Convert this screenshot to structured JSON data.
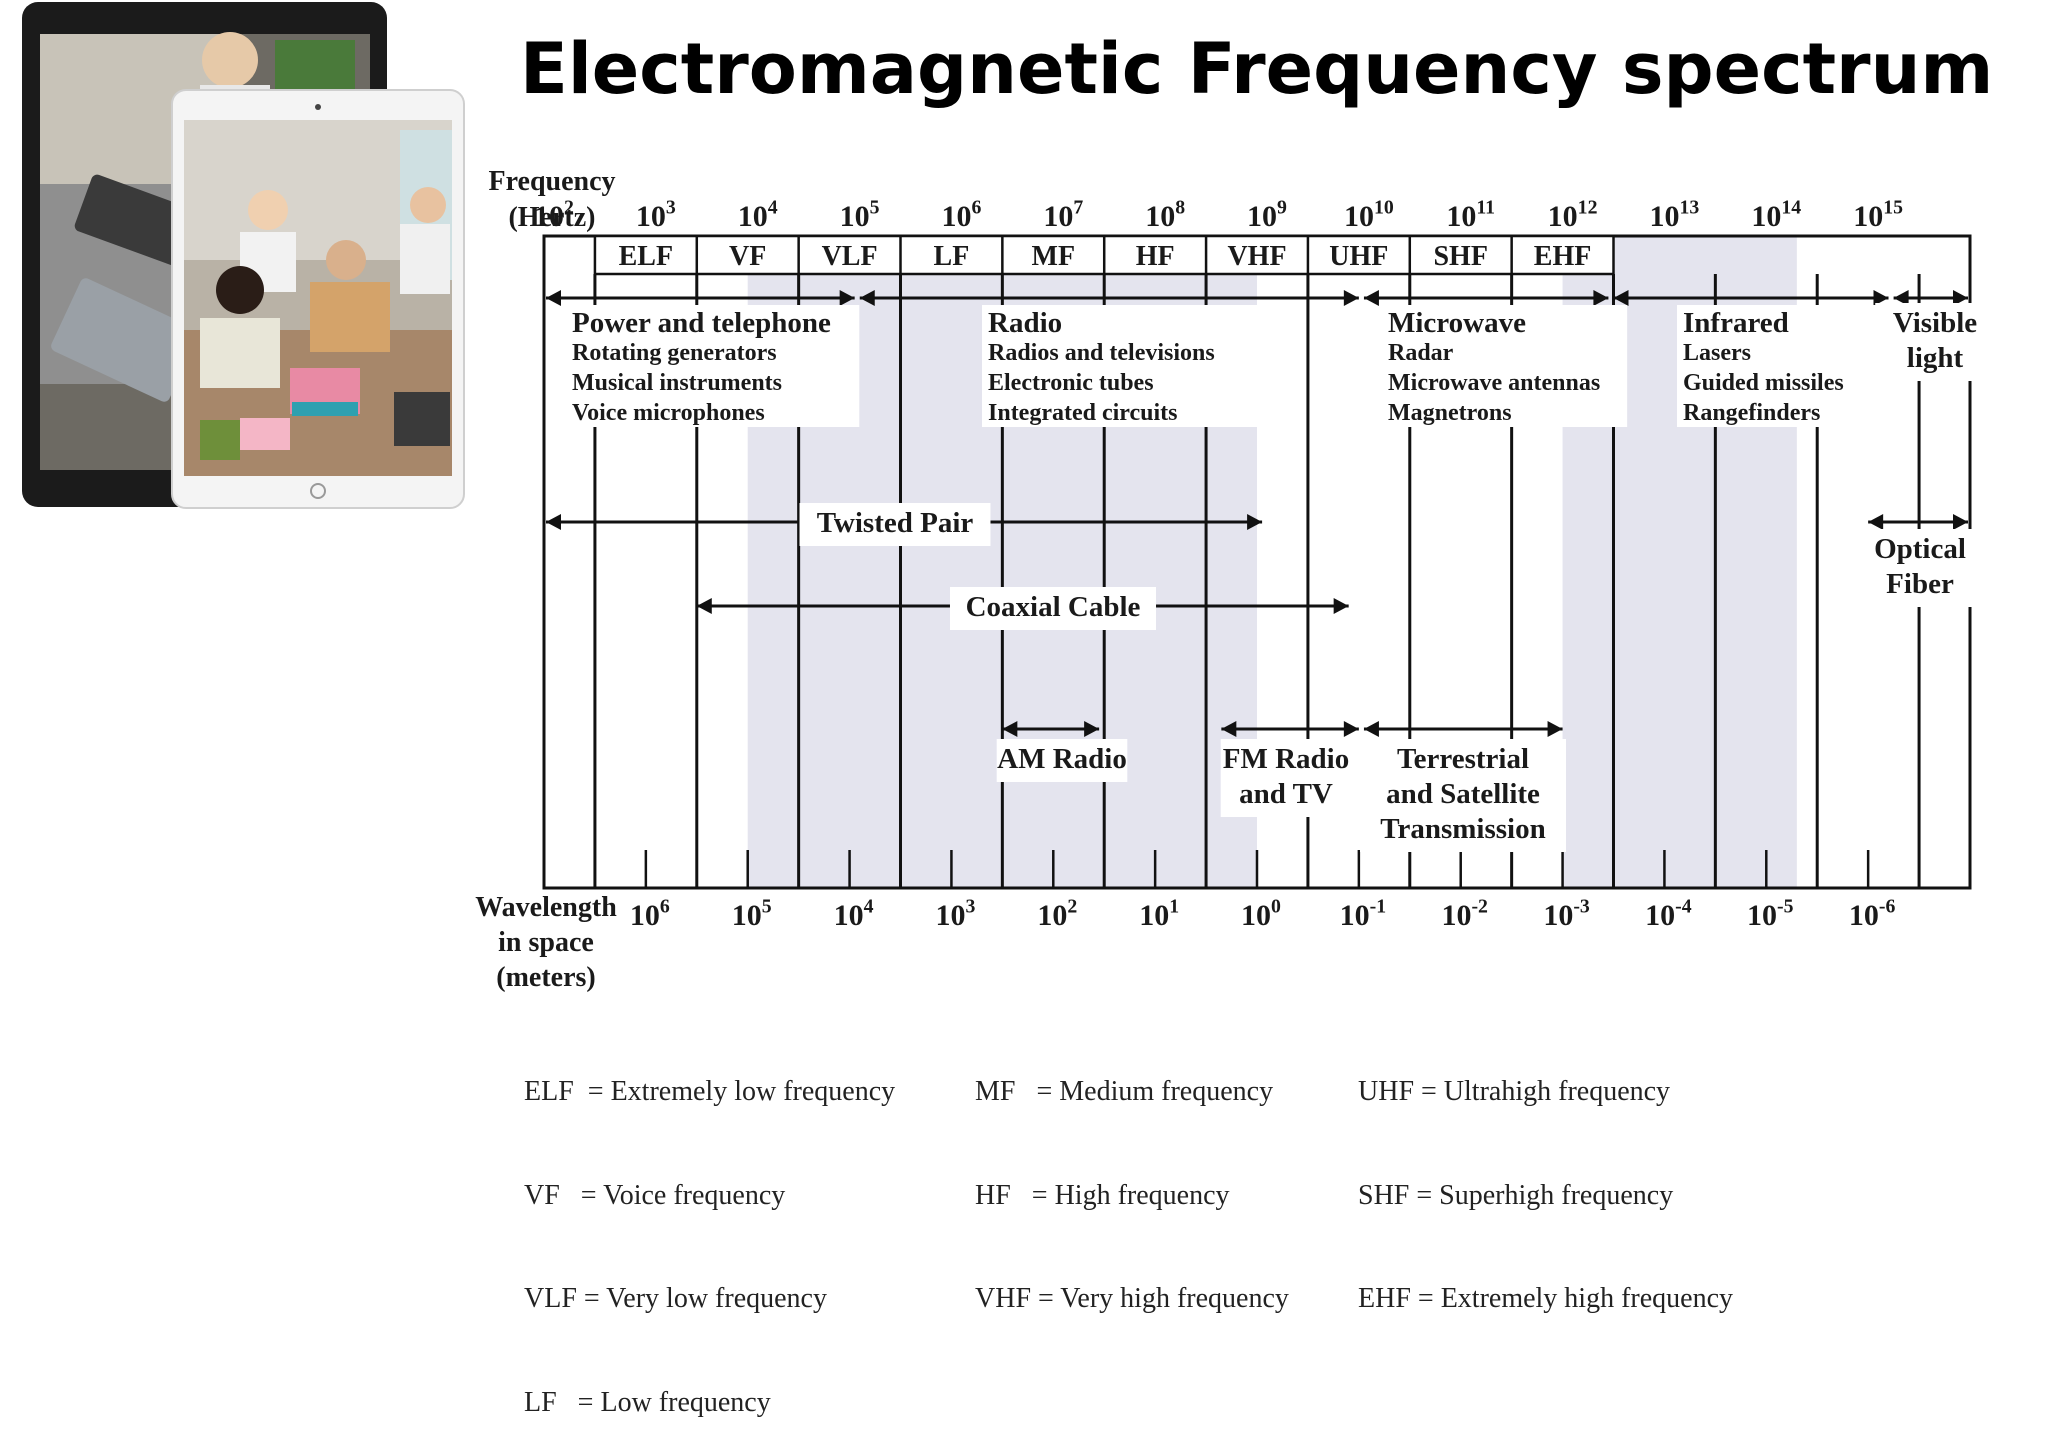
{
  "title": "Electromagnetic Frequency spectrum",
  "axis": {
    "freq_label": [
      "Frequency",
      "(Hertz)"
    ],
    "wave_label": [
      "Wavelength",
      "in space",
      "(meters)"
    ],
    "freq_ticks": [
      {
        "base": "10",
        "exp": "2"
      },
      {
        "base": "10",
        "exp": "3"
      },
      {
        "base": "10",
        "exp": "4"
      },
      {
        "base": "10",
        "exp": "5"
      },
      {
        "base": "10",
        "exp": "6"
      },
      {
        "base": "10",
        "exp": "7"
      },
      {
        "base": "10",
        "exp": "8"
      },
      {
        "base": "10",
        "exp": "9"
      },
      {
        "base": "10",
        "exp": "10"
      },
      {
        "base": "10",
        "exp": "11"
      },
      {
        "base": "10",
        "exp": "12"
      },
      {
        "base": "10",
        "exp": "13"
      },
      {
        "base": "10",
        "exp": "14"
      },
      {
        "base": "10",
        "exp": "15"
      }
    ],
    "wave_ticks": [
      {
        "base": "10",
        "exp": "6"
      },
      {
        "base": "10",
        "exp": "5"
      },
      {
        "base": "10",
        "exp": "4"
      },
      {
        "base": "10",
        "exp": "3"
      },
      {
        "base": "10",
        "exp": "2"
      },
      {
        "base": "10",
        "exp": "1"
      },
      {
        "base": "10",
        "exp": "0"
      },
      {
        "base": "10",
        "exp": "-1"
      },
      {
        "base": "10",
        "exp": "-2"
      },
      {
        "base": "10",
        "exp": "-3"
      },
      {
        "base": "10",
        "exp": "-4"
      },
      {
        "base": "10",
        "exp": "-5"
      },
      {
        "base": "10",
        "exp": "-6"
      }
    ]
  },
  "bands": [
    "ELF",
    "VF",
    "VLF",
    "LF",
    "MF",
    "HF",
    "VHF",
    "UHF",
    "SHF",
    "EHF"
  ],
  "regions": [
    {
      "title": "Power and telephone",
      "items": [
        "Rotating generators",
        "Musical instruments",
        "Voice microphones"
      ]
    },
    {
      "title": "Radio",
      "items": [
        "Radios and televisions",
        "Electronic tubes",
        "Integrated circuits"
      ]
    },
    {
      "title": "Microwave",
      "items": [
        "Radar",
        "Microwave antennas",
        "Magnetrons"
      ]
    },
    {
      "title": "Infrared",
      "items": [
        "Lasers",
        "Guided missiles",
        "Rangefinders"
      ]
    },
    {
      "title": "Visible",
      "items": [
        "light"
      ]
    }
  ],
  "media": {
    "twisted_pair": "Twisted Pair",
    "coaxial_cable": "Coaxial Cable",
    "optical_fiber": [
      "Optical",
      "Fiber"
    ],
    "am_radio": "AM Radio",
    "fm_radio": [
      "FM Radio",
      "and TV"
    ],
    "terrestrial": [
      "Terrestrial",
      "and Satellite",
      "Transmission"
    ]
  },
  "legend": [
    [
      "ELF  = Extremely low frequency",
      "VF   = Voice frequency",
      "VLF = Very low frequency",
      "LF   = Low frequency"
    ],
    [
      "MF   = Medium frequency",
      "HF   = High frequency",
      "VHF = Very high frequency"
    ],
    [
      "UHF = Ultrahigh frequency",
      "SHF = Superhigh frequency",
      "EHF = Extremely high frequency"
    ]
  ],
  "colors": {
    "shade": "#e4e4ee",
    "line": "#111111"
  }
}
